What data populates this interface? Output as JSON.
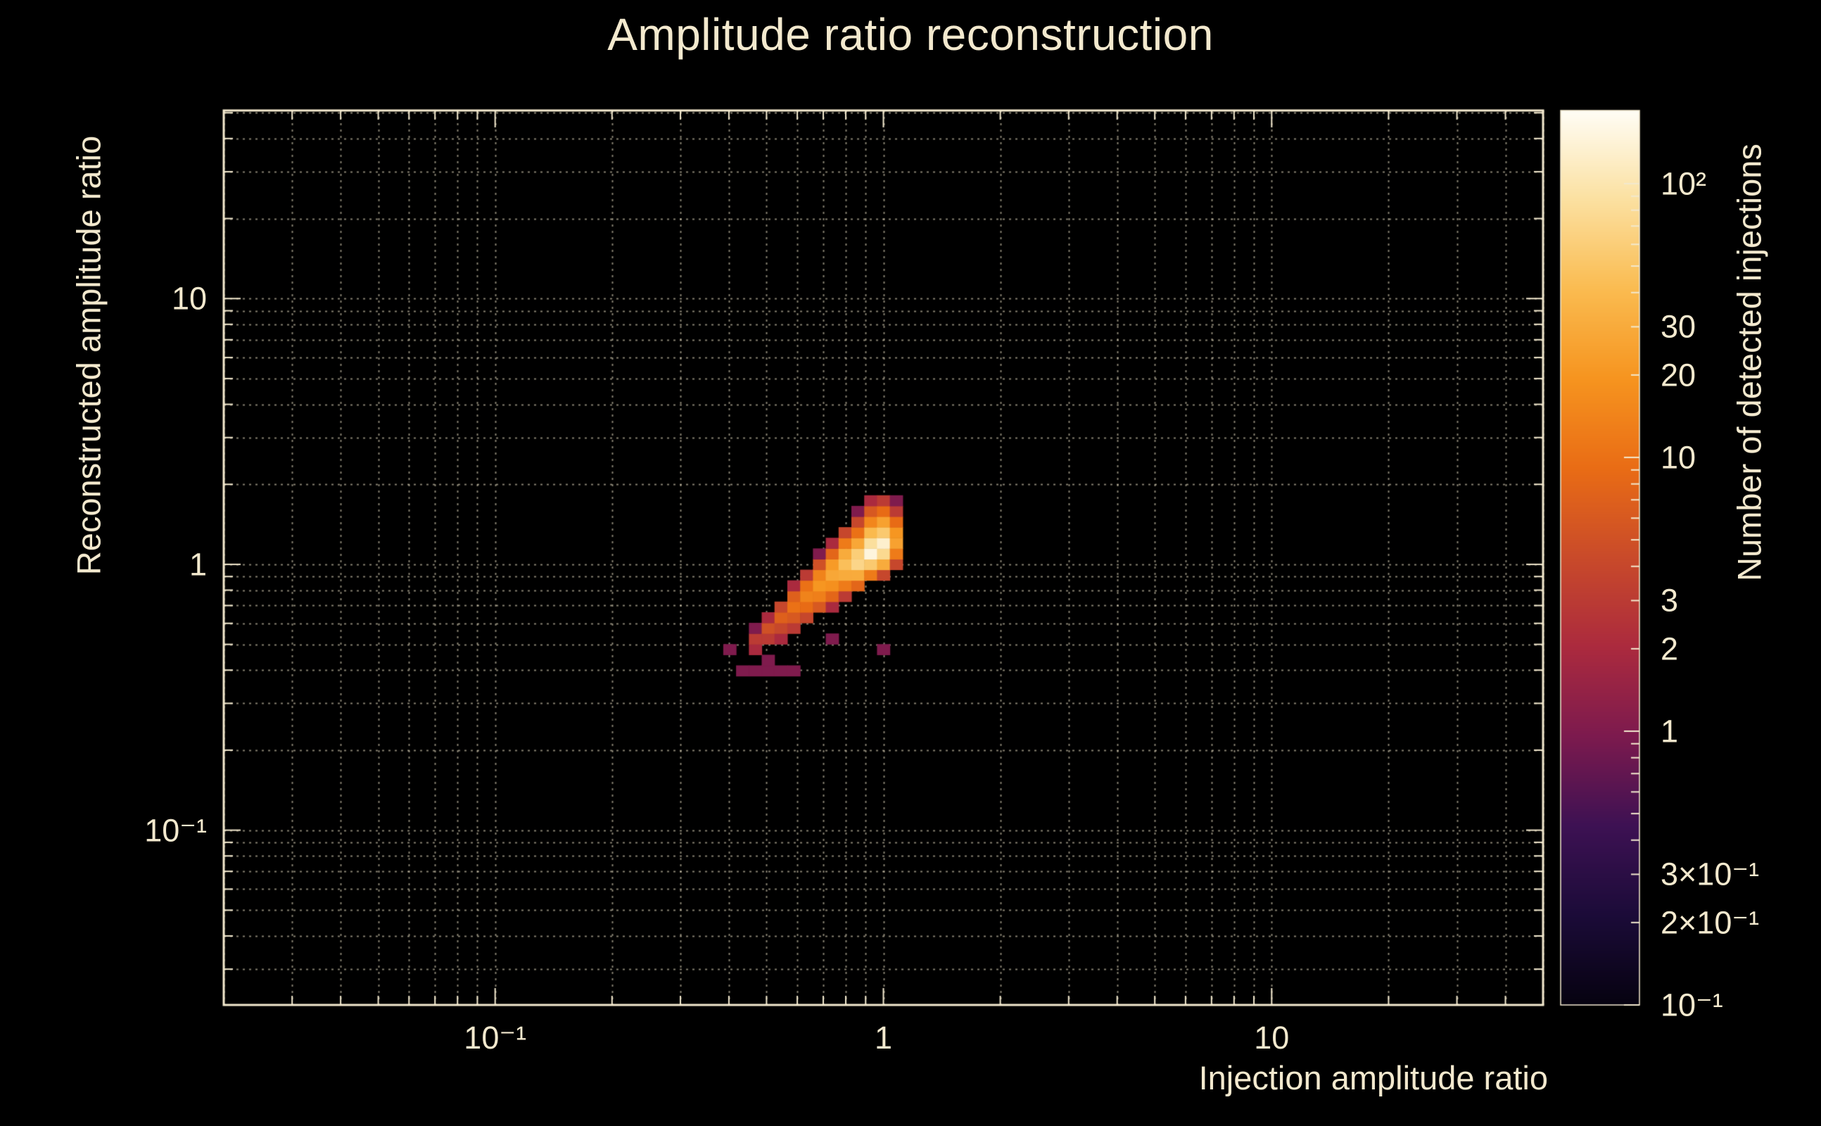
{
  "title": "Amplitude ratio reconstruction",
  "colors": {
    "background": "#000000",
    "foreground": "#f3e9ce",
    "grid": "#efe5c8",
    "frame": "#f3e9ce",
    "palette_stops": [
      [
        0.0,
        "#060210"
      ],
      [
        0.1,
        "#1b0b38"
      ],
      [
        0.2,
        "#3d1153"
      ],
      [
        0.3,
        "#7c1a4e"
      ],
      [
        0.4,
        "#ab2a3e"
      ],
      [
        0.5,
        "#c94a2a"
      ],
      [
        0.6,
        "#e96c15"
      ],
      [
        0.7,
        "#f6941f"
      ],
      [
        0.8,
        "#fabb50"
      ],
      [
        0.9,
        "#fbe0a0"
      ],
      [
        1.0,
        "#fffdf5"
      ]
    ]
  },
  "chart_data": {
    "type": "heatmap",
    "title": "Amplitude ratio reconstruction",
    "xlabel": "Injection amplitude ratio",
    "ylabel": "Reconstructed amplitude ratio",
    "zlabel": "Number of detected injections",
    "xscale": "log",
    "yscale": "log",
    "zscale": "log",
    "xlim": [
      0.02,
      50
    ],
    "ylim": [
      0.022,
      51
    ],
    "zlim": [
      0.1,
      185
    ],
    "grid": true,
    "x_ticks": [
      {
        "value": 0.1,
        "label": "10⁻¹"
      },
      {
        "value": 1,
        "label": "1"
      },
      {
        "value": 10,
        "label": "10"
      }
    ],
    "y_ticks": [
      {
        "value": 10,
        "label": "10"
      },
      {
        "value": 1,
        "label": "1"
      },
      {
        "value": 0.1,
        "label": "10⁻¹"
      }
    ],
    "z_ticks": [
      {
        "value": 100,
        "label": "10²"
      },
      {
        "value": 30,
        "label": "30"
      },
      {
        "value": 20,
        "label": "20"
      },
      {
        "value": 10,
        "label": "10"
      },
      {
        "value": 3,
        "label": "3"
      },
      {
        "value": 2,
        "label": "2"
      },
      {
        "value": 1,
        "label": "1"
      },
      {
        "value": 0.3,
        "label": "3×10⁻¹"
      },
      {
        "value": 0.2,
        "label": "2×10⁻¹"
      },
      {
        "value": 0.1,
        "label": "10⁻¹"
      }
    ],
    "x_bin_log_width": 0.033,
    "y_bin_log_width": 0.04,
    "cells_format": "[x_bin_index, y_bin_index, count]; bin center in log10 units = index * bin_log_width",
    "cells": [
      [
        -12,
        -8,
        1
      ],
      [
        -11,
        -10,
        1
      ],
      [
        -10,
        -10,
        1
      ],
      [
        -10,
        -8,
        2
      ],
      [
        -10,
        -7,
        3
      ],
      [
        -10,
        -6,
        1
      ],
      [
        -9,
        -10,
        1
      ],
      [
        -9,
        -9,
        1
      ],
      [
        -9,
        -7,
        3
      ],
      [
        -9,
        -6,
        5
      ],
      [
        -9,
        -5,
        2
      ],
      [
        -8,
        -10,
        1
      ],
      [
        -8,
        -7,
        2
      ],
      [
        -8,
        -6,
        4
      ],
      [
        -8,
        -5,
        7
      ],
      [
        -8,
        -4,
        4
      ],
      [
        -7,
        -10,
        1
      ],
      [
        -7,
        -6,
        3
      ],
      [
        -7,
        -5,
        6
      ],
      [
        -7,
        -4,
        10
      ],
      [
        -7,
        -3,
        7
      ],
      [
        -7,
        -2,
        2
      ],
      [
        -6,
        -5,
        4
      ],
      [
        -6,
        -4,
        9
      ],
      [
        -6,
        -3,
        14
      ],
      [
        -6,
        -2,
        10
      ],
      [
        -6,
        -1,
        3
      ],
      [
        -5,
        -4,
        6
      ],
      [
        -5,
        -3,
        13
      ],
      [
        -5,
        -2,
        20
      ],
      [
        -5,
        -1,
        14
      ],
      [
        -5,
        0,
        5
      ],
      [
        -5,
        1,
        1
      ],
      [
        -4,
        -7,
        1
      ],
      [
        -4,
        -4,
        2
      ],
      [
        -4,
        -3,
        8
      ],
      [
        -4,
        -2,
        18
      ],
      [
        -4,
        -1,
        28
      ],
      [
        -4,
        0,
        22
      ],
      [
        -4,
        1,
        8
      ],
      [
        -4,
        2,
        2
      ],
      [
        -3,
        -3,
        3
      ],
      [
        -3,
        -2,
        12
      ],
      [
        -3,
        -1,
        30
      ],
      [
        -3,
        0,
        45
      ],
      [
        -3,
        1,
        30
      ],
      [
        -3,
        2,
        12
      ],
      [
        -3,
        3,
        4
      ],
      [
        -2,
        -2,
        8
      ],
      [
        -2,
        -1,
        30
      ],
      [
        -2,
        0,
        70
      ],
      [
        -2,
        1,
        60
      ],
      [
        -2,
        2,
        28
      ],
      [
        -2,
        3,
        10
      ],
      [
        -2,
        4,
        4
      ],
      [
        -2,
        5,
        1
      ],
      [
        -1,
        -1,
        12
      ],
      [
        -1,
        0,
        55
      ],
      [
        -1,
        1,
        150
      ],
      [
        -1,
        2,
        85
      ],
      [
        -1,
        3,
        40
      ],
      [
        -1,
        4,
        15
      ],
      [
        -1,
        5,
        6
      ],
      [
        -1,
        6,
        2
      ],
      [
        0,
        -8,
        1
      ],
      [
        0,
        -1,
        4
      ],
      [
        0,
        0,
        30
      ],
      [
        0,
        1,
        75
      ],
      [
        0,
        2,
        130
      ],
      [
        0,
        3,
        55
      ],
      [
        0,
        4,
        25
      ],
      [
        0,
        5,
        9
      ],
      [
        0,
        6,
        3
      ],
      [
        1,
        0,
        4
      ],
      [
        1,
        1,
        12
      ],
      [
        1,
        2,
        25
      ],
      [
        1,
        3,
        20
      ],
      [
        1,
        4,
        9
      ],
      [
        1,
        5,
        3
      ],
      [
        1,
        6,
        1
      ]
    ]
  }
}
